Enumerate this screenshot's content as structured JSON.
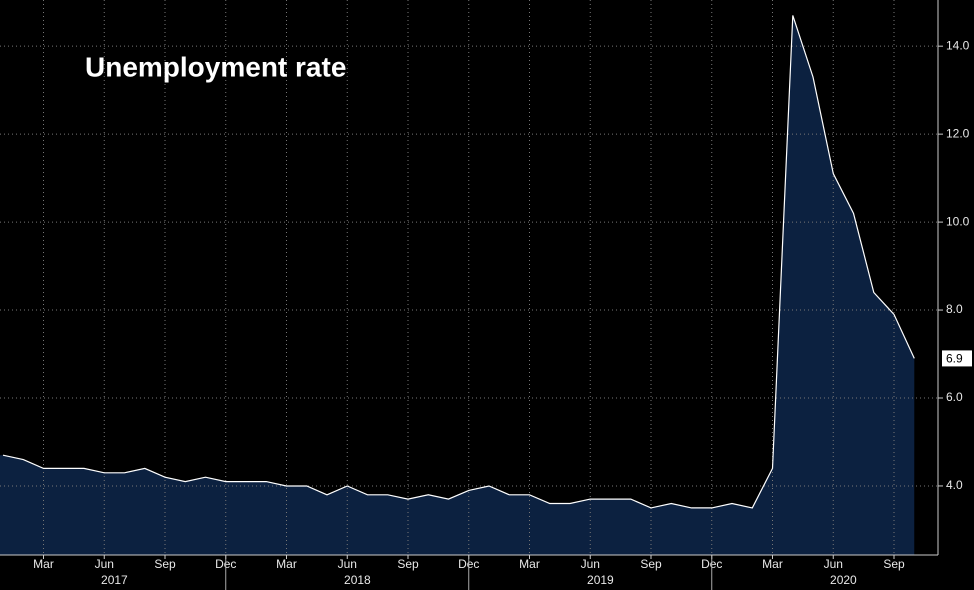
{
  "chart_data": {
    "type": "area",
    "title": "Unemployment rate",
    "x": [
      "2017-01",
      "2017-02",
      "2017-03",
      "2017-04",
      "2017-05",
      "2017-06",
      "2017-07",
      "2017-08",
      "2017-09",
      "2017-10",
      "2017-11",
      "2017-12",
      "2018-01",
      "2018-02",
      "2018-03",
      "2018-04",
      "2018-05",
      "2018-06",
      "2018-07",
      "2018-08",
      "2018-09",
      "2018-10",
      "2018-11",
      "2018-12",
      "2019-01",
      "2019-02",
      "2019-03",
      "2019-04",
      "2019-05",
      "2019-06",
      "2019-07",
      "2019-08",
      "2019-09",
      "2019-10",
      "2019-11",
      "2019-12",
      "2020-01",
      "2020-02",
      "2020-03",
      "2020-04",
      "2020-05",
      "2020-06",
      "2020-07",
      "2020-08",
      "2020-09",
      "2020-10"
    ],
    "values": [
      4.7,
      4.6,
      4.4,
      4.4,
      4.4,
      4.3,
      4.3,
      4.4,
      4.2,
      4.1,
      4.2,
      4.1,
      4.1,
      4.1,
      4.0,
      4.0,
      3.8,
      4.0,
      3.8,
      3.8,
      3.7,
      3.8,
      3.7,
      3.9,
      4.0,
      3.8,
      3.8,
      3.6,
      3.6,
      3.7,
      3.7,
      3.7,
      3.5,
      3.6,
      3.5,
      3.5,
      3.6,
      3.5,
      4.4,
      14.7,
      13.3,
      11.1,
      10.2,
      8.4,
      7.9,
      6.9
    ],
    "line_color": "#ffffff",
    "fill_color": "#0c2140",
    "ylim": [
      2.43,
      15.05
    ],
    "yticks": [
      {
        "value": 4,
        "label": "4.0"
      },
      {
        "value": 6,
        "label": "6.0"
      },
      {
        "value": 8,
        "label": "8.0"
      },
      {
        "value": 10,
        "label": "10.0"
      },
      {
        "value": 12,
        "label": "12.0"
      },
      {
        "value": 14,
        "label": "14.0"
      }
    ],
    "xticks": [
      {
        "value": "2017-03",
        "label": "Mar"
      },
      {
        "value": "2017-06",
        "label": "Jun"
      },
      {
        "value": "2017-09",
        "label": "Sep"
      },
      {
        "value": "2017-12",
        "label": "Dec"
      },
      {
        "value": "2018-03",
        "label": "Mar"
      },
      {
        "value": "2018-06",
        "label": "Jun"
      },
      {
        "value": "2018-09",
        "label": "Sep"
      },
      {
        "value": "2018-12",
        "label": "Dec"
      },
      {
        "value": "2019-03",
        "label": "Mar"
      },
      {
        "value": "2019-06",
        "label": "Jun"
      },
      {
        "value": "2019-09",
        "label": "Sep"
      },
      {
        "value": "2019-12",
        "label": "Dec"
      },
      {
        "value": "2020-03",
        "label": "Mar"
      },
      {
        "value": "2020-06",
        "label": "Jun"
      },
      {
        "value": "2020-09",
        "label": "Sep"
      }
    ],
    "years": [
      "2017",
      "2018",
      "2019",
      "2020"
    ],
    "grid": true
  }
}
